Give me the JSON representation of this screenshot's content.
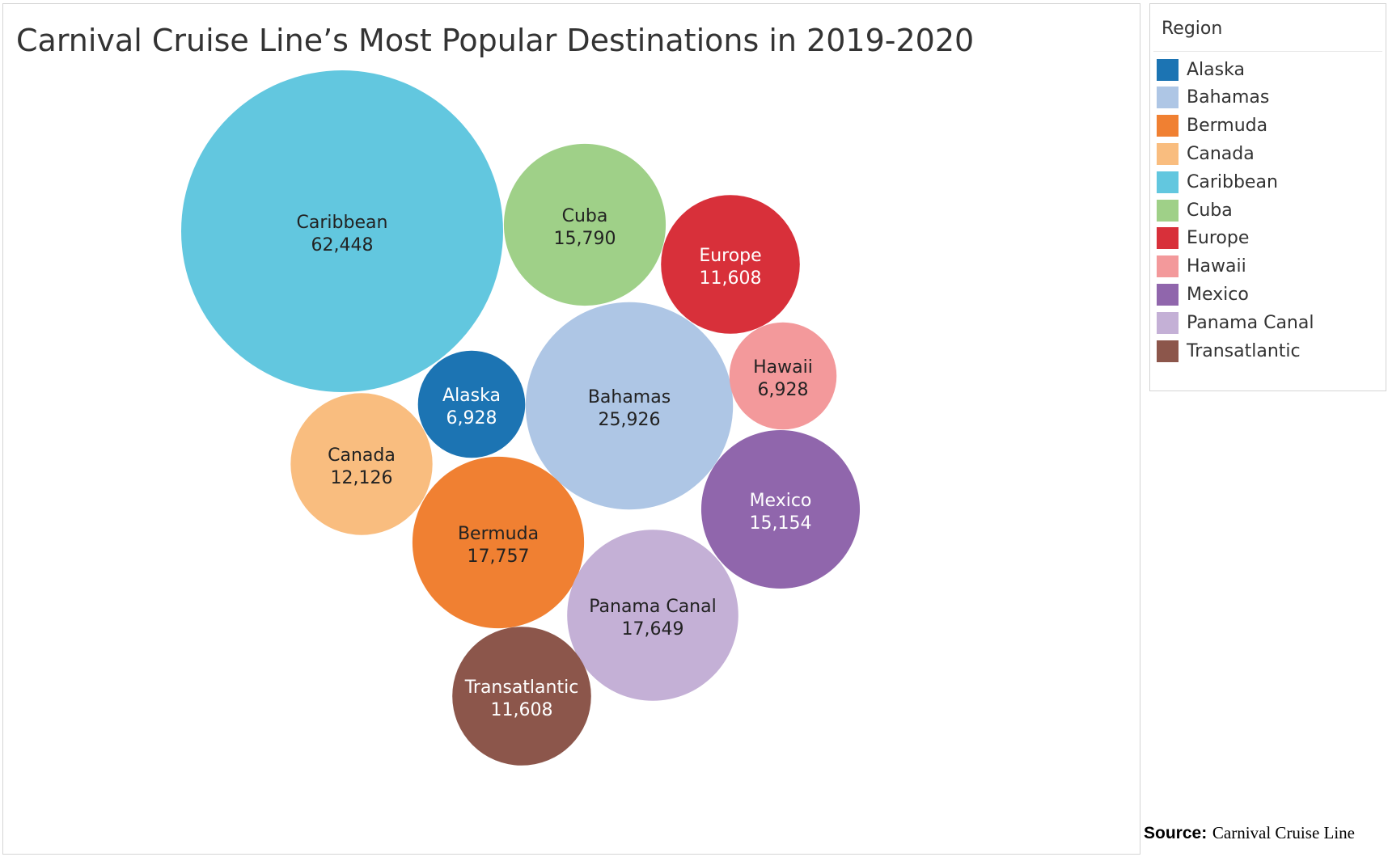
{
  "chart_data": {
    "type": "bubble",
    "title": "Carnival Cruise Line’s Most Popular Destinations in 2019-2020",
    "legend_title": "Region",
    "legend_position": "right",
    "items": [
      {
        "region": "Caribbean",
        "value": 62448,
        "value_label": "62,448",
        "color": "#62c7df",
        "text_color": "#222222"
      },
      {
        "region": "Cuba",
        "value": 15790,
        "value_label": "15,790",
        "color": "#9fd088",
        "text_color": "#222222"
      },
      {
        "region": "Europe",
        "value": 11608,
        "value_label": "11,608",
        "color": "#d8303a",
        "text_color": "#ffffff"
      },
      {
        "region": "Alaska",
        "value": 6928,
        "value_label": "6,928",
        "color": "#1c74b3",
        "text_color": "#ffffff"
      },
      {
        "region": "Bahamas",
        "value": 25926,
        "value_label": "25,926",
        "color": "#aec6e5",
        "text_color": "#222222"
      },
      {
        "region": "Hawaii",
        "value": 6928,
        "value_label": "6,928",
        "color": "#f3999b",
        "text_color": "#222222"
      },
      {
        "region": "Canada",
        "value": 12126,
        "value_label": "12,126",
        "color": "#f9bd7f",
        "text_color": "#222222"
      },
      {
        "region": "Mexico",
        "value": 15154,
        "value_label": "15,154",
        "color": "#9066ac",
        "text_color": "#ffffff"
      },
      {
        "region": "Bermuda",
        "value": 17757,
        "value_label": "17,757",
        "color": "#f08032",
        "text_color": "#222222"
      },
      {
        "region": "Panama Canal",
        "value": 17649,
        "value_label": "17,649",
        "color": "#c4b0d6",
        "text_color": "#222222"
      },
      {
        "region": "Transatlantic",
        "value": 11608,
        "value_label": "11,608",
        "color": "#8c564b",
        "text_color": "#ffffff"
      }
    ],
    "legend": [
      {
        "label": "Alaska",
        "color": "#1c74b3"
      },
      {
        "label": "Bahamas",
        "color": "#aec6e5"
      },
      {
        "label": "Bermuda",
        "color": "#f08032"
      },
      {
        "label": "Canada",
        "color": "#f9bd7f"
      },
      {
        "label": "Caribbean",
        "color": "#62c7df"
      },
      {
        "label": "Cuba",
        "color": "#9fd088"
      },
      {
        "label": "Europe",
        "color": "#d8303a"
      },
      {
        "label": "Hawaii",
        "color": "#f3999b"
      },
      {
        "label": "Mexico",
        "color": "#9066ac"
      },
      {
        "label": "Panama Canal",
        "color": "#c4b0d6"
      },
      {
        "label": "Transatlantic",
        "color": "#8c564b"
      }
    ]
  },
  "source": {
    "label": "Source:",
    "text": "Carnival Cruise Line"
  }
}
